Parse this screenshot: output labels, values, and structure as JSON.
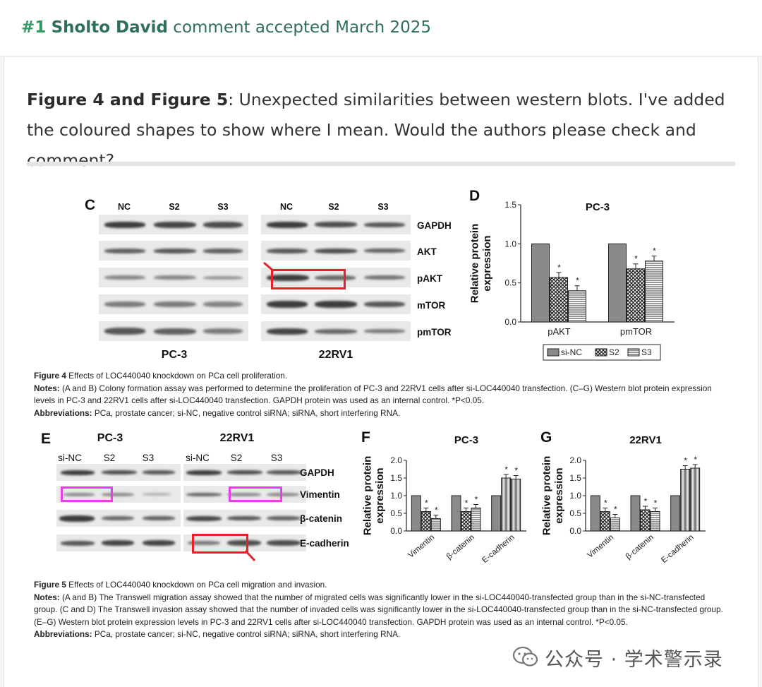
{
  "comment": {
    "number": "#1",
    "author": "Sholto David",
    "status": "comment accepted March 2025",
    "figure_ref": "Figure 4 and Figure 5",
    "text": ": Unexpected similarities between western blots. I've added the coloured shapes to show where I mean. Would the authors please check and comment?"
  },
  "figure4": {
    "panel_c": "C",
    "panel_d": "D",
    "lanes": [
      "NC",
      "S2",
      "S3"
    ],
    "proteins": [
      "GAPDH",
      "AKT",
      "pAKT",
      "mTOR",
      "pmTOR"
    ],
    "cells": [
      "PC-3",
      "22RV1"
    ],
    "caption_title": "Figure 4",
    "caption_title_rest": " Effects of LOC440040 knockdown on PCa cell proliferation.",
    "notes_label": "Notes:",
    "notes": " (A and B) Colony formation assay was performed to determine the proliferation of PC-3 and 22RV1 cells after si-LOC440040 transfection. (C–G) Western blot protein expression levels in PC-3 and 22RV1 cells after si-LOC440040 transfection. GAPDH protein was used as an internal control. *P<0.05.",
    "abbr_label": "Abbreviations:",
    "abbr": " PCa, prostate cancer; si-NC, negative control siRNA; siRNA, short interfering RNA."
  },
  "figure5": {
    "panel_e": "E",
    "panel_f": "F",
    "panel_g": "G",
    "lanes": [
      "si-NC",
      "S2",
      "S3"
    ],
    "proteins": [
      "GAPDH",
      "Vimentin",
      "β-catenin",
      "E-cadherin"
    ],
    "cells": [
      "PC-3",
      "22RV1"
    ],
    "caption_title": "Figure 5",
    "caption_title_rest": " Effects of LOC440040 knockdown on PCa cell migration and invasion.",
    "notes_label": "Notes:",
    "notes": " (A and B) The Transwell migration assay showed that the number of migrated cells was significantly lower in the si-LOC440040-transfected group than in the si-NC-transfected group. (C and D) The Transwell invasion assay showed that the number of invaded cells was significantly lower in the si-LOC440040-transfected group than in the si-NC-transfected group. (E–G) Western blot protein expression levels in PC-3 and 22RV1 cells after si-LOC440040 transfection. GAPDH protein was used as an internal control. *P<0.05.",
    "abbr_label": "Abbreviations:",
    "abbr": " PCa, prostate cancer; si-NC, negative control siRNA; siRNA, short interfering RNA."
  },
  "chart_data": [
    {
      "type": "bar",
      "panel": "D",
      "title": "PC-3",
      "ylabel": "Relative protein expression",
      "ylim": [
        0,
        1.5
      ],
      "yticks": [
        "0.0",
        "0.5",
        "1.0",
        "1.5"
      ],
      "categories": [
        "pAKT",
        "pmTOR"
      ],
      "legend": [
        "si-NC",
        "S2",
        "S3"
      ],
      "series": [
        {
          "name": "si-NC",
          "values": [
            1.0,
            1.0
          ]
        },
        {
          "name": "S2",
          "values": [
            0.57,
            0.68
          ]
        },
        {
          "name": "S3",
          "values": [
            0.4,
            0.78
          ]
        }
      ],
      "significance": [
        [
          false,
          true,
          true
        ],
        [
          false,
          true,
          true
        ]
      ]
    },
    {
      "type": "bar",
      "panel": "F",
      "title": "PC-3",
      "ylabel": "Relative protein expression",
      "ylim": [
        0,
        2.0
      ],
      "yticks": [
        "0.0",
        "0.5",
        "1.0",
        "1.5",
        "2.0"
      ],
      "categories": [
        "Vimentin",
        "β-catenin",
        "E-cadherin"
      ],
      "series": [
        {
          "name": "si-NC",
          "values": [
            1.0,
            1.0,
            1.0
          ]
        },
        {
          "name": "S2",
          "values": [
            0.55,
            0.55,
            1.5
          ]
        },
        {
          "name": "S3",
          "values": [
            0.35,
            0.65,
            1.47
          ]
        }
      ],
      "significance": [
        [
          false,
          true,
          true
        ],
        [
          false,
          true,
          true
        ],
        [
          false,
          true,
          true
        ]
      ]
    },
    {
      "type": "bar",
      "panel": "G",
      "title": "22RV1",
      "ylabel": "Relative protein expression",
      "ylim": [
        0,
        2.0
      ],
      "yticks": [
        "0.0",
        "0.5",
        "1.0",
        "1.5",
        "2.0"
      ],
      "categories": [
        "Vimentin",
        "β-catenin",
        "E-cadherin"
      ],
      "series": [
        {
          "name": "si-NC",
          "values": [
            1.0,
            1.0,
            1.0
          ]
        },
        {
          "name": "S2",
          "values": [
            0.55,
            0.6,
            1.75
          ]
        },
        {
          "name": "S3",
          "values": [
            0.37,
            0.55,
            1.78
          ]
        }
      ],
      "significance": [
        [
          false,
          true,
          true
        ],
        [
          false,
          true,
          true
        ],
        [
          false,
          true,
          true
        ]
      ]
    }
  ],
  "colors": {
    "accent_green": "#2f9a62",
    "header_text": "#2f6f58",
    "highlight_red": "#e8202a",
    "highlight_magenta": "#e83ee8"
  },
  "watermark": "公众号 · 学术警示录",
  "icons": [
    "wechat-icon"
  ]
}
